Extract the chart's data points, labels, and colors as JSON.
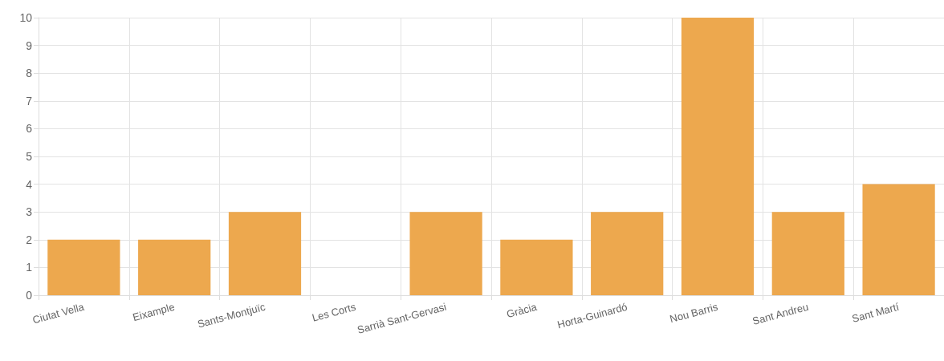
{
  "chart_data": {
    "type": "bar",
    "categories": [
      "Ciutat Vella",
      "Eixample",
      "Sants-Montjuïc",
      "Les Corts",
      "Sarrià Sant-Gervasi",
      "Gràcia",
      "Horta-Guinardó",
      "Nou Barris",
      "Sant Andreu",
      "Sant Martí"
    ],
    "values": [
      2,
      2,
      3,
      0,
      3,
      2,
      3,
      10,
      3,
      4
    ],
    "color": "#eda84e",
    "ylim": [
      0,
      10
    ],
    "yticks": [
      0,
      1,
      2,
      3,
      4,
      5,
      6,
      7,
      8,
      9,
      10
    ],
    "grid": true
  }
}
